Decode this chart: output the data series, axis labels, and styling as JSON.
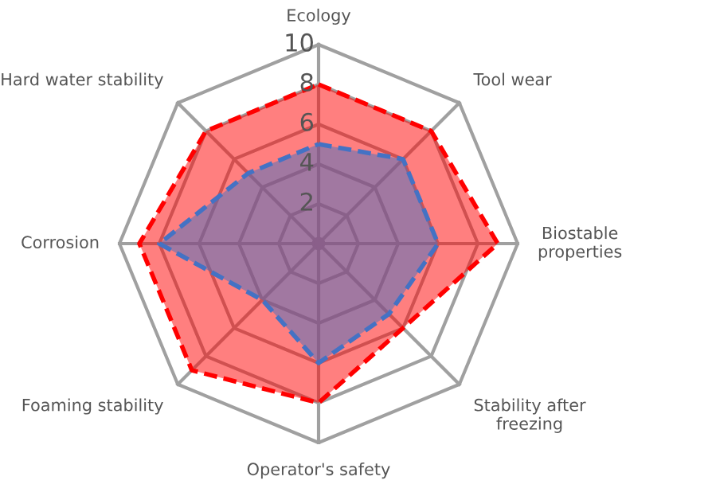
{
  "chart_data": {
    "type": "radar",
    "categories": [
      "Ecology",
      "Tool wear",
      "Biostable\nproperties",
      "Stability after\nfreezing",
      "Operator's safety",
      "Foaming stability",
      "Corrosion",
      "Hard water stability"
    ],
    "ylim": [
      0,
      10
    ],
    "yticks": [
      2,
      4,
      6,
      8,
      10
    ],
    "grid": true,
    "legend": false,
    "line_style": "dashed",
    "series": [
      {
        "color": "#ff0000",
        "values": [
          8,
          8,
          9,
          6,
          8,
          9,
          9,
          8
        ]
      },
      {
        "color": "#4472c4",
        "values": [
          5,
          6,
          6,
          5,
          6,
          4,
          8,
          5
        ]
      }
    ]
  }
}
